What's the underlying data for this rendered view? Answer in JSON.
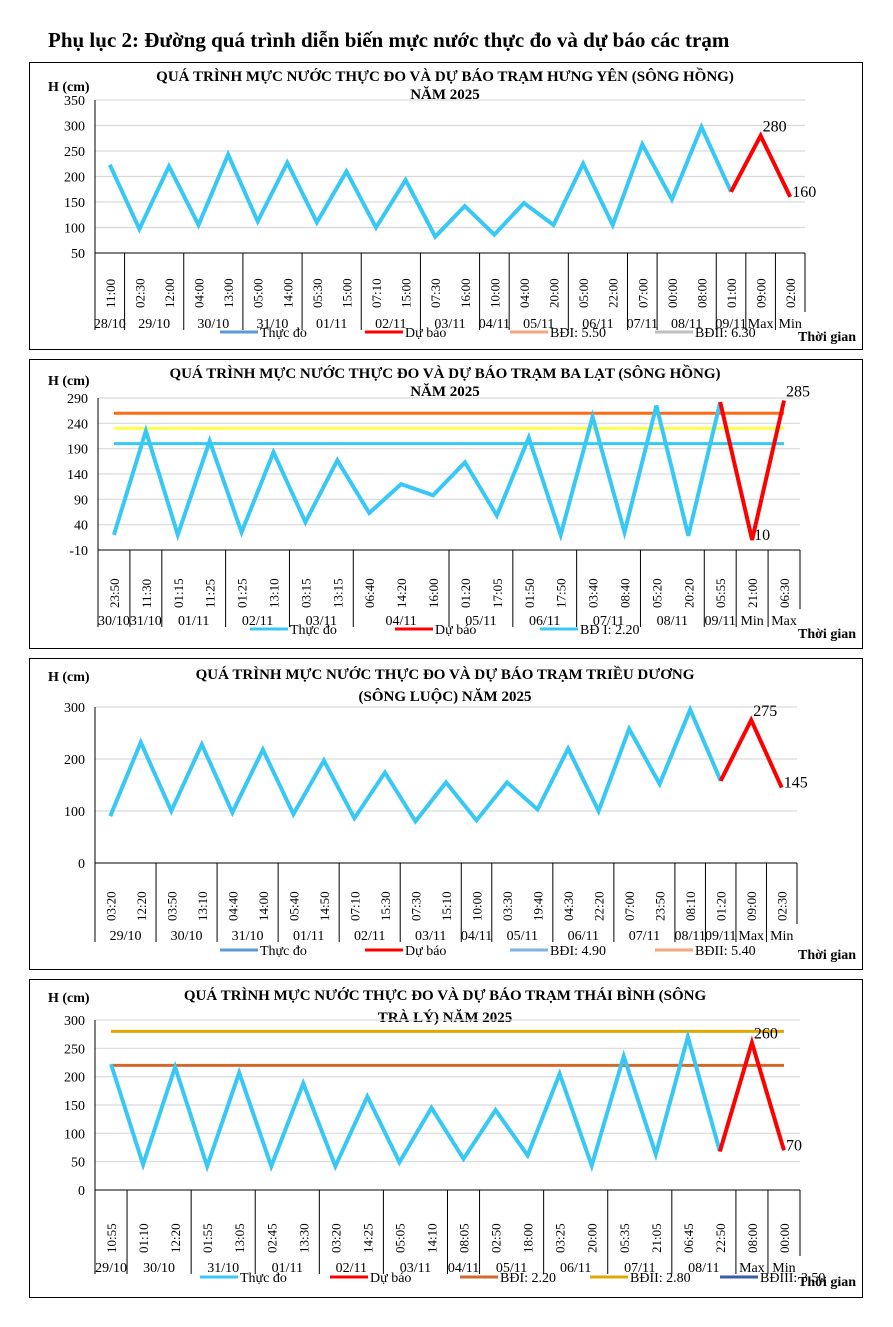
{
  "page_title": "Phụ lục 2: Đường quá trình diễn biến mực nước thực đo và dự báo các trạm",
  "chart_data": [
    {
      "type": "line",
      "title": [
        "QUÁ TRÌNH MỰC NƯỚC THỰC ĐO VÀ DỰ BÁO TRẠM HƯNG YÊN  (SÔNG HỒNG)",
        "NĂM 2025"
      ],
      "ylabel": "H (cm)",
      "xlabel": "Thời gian",
      "ylim": [
        50,
        350
      ],
      "yticks": [
        50,
        100,
        150,
        200,
        250,
        300,
        350
      ],
      "grid": true,
      "times": [
        "11:00",
        "02:30",
        "12:00",
        "04:00",
        "13:00",
        "05:00",
        "14:00",
        "05:30",
        "15:00",
        "07:10",
        "15:00",
        "07:30",
        "16:00",
        "10:00",
        "04:00",
        "20:00",
        "05:00",
        "22:00",
        "07:00",
        "00:00",
        "08:00",
        "01:00",
        "09:00",
        "02:00"
      ],
      "groups": [
        {
          "label": "28/10",
          "span": 1
        },
        {
          "label": "29/10",
          "span": 2
        },
        {
          "label": "30/10",
          "span": 2
        },
        {
          "label": "31/10",
          "span": 2
        },
        {
          "label": "01/11",
          "span": 2
        },
        {
          "label": "02/11",
          "span": 2
        },
        {
          "label": "03/11",
          "span": 2
        },
        {
          "label": "04/11",
          "span": 1
        },
        {
          "label": "05/11",
          "span": 2
        },
        {
          "label": "06/11",
          "span": 2
        },
        {
          "label": "07/11",
          "span": 1
        },
        {
          "label": "08/11",
          "span": 2
        },
        {
          "label": "09/11",
          "span": 1
        },
        {
          "label": "Max",
          "span": 1
        },
        {
          "label": "Min",
          "span": 1
        }
      ],
      "series": [
        {
          "name": "Thực đo",
          "color": "#38c8f5",
          "values": [
            223,
            97,
            220,
            105,
            243,
            112,
            227,
            110,
            210,
            100,
            193,
            82,
            142,
            86,
            148,
            105,
            225,
            105,
            263,
            155,
            297,
            170,
            null,
            null
          ]
        },
        {
          "name": "Dự báo",
          "color": "#ff0000",
          "values": [
            null,
            null,
            null,
            null,
            null,
            null,
            null,
            null,
            null,
            null,
            null,
            null,
            null,
            null,
            null,
            null,
            null,
            null,
            null,
            null,
            null,
            170,
            280,
            160
          ]
        }
      ],
      "thresholds": [],
      "annotations": [
        {
          "index": 22,
          "text": "280"
        },
        {
          "index": 23,
          "text": "160"
        }
      ],
      "legend": [
        {
          "label": "Thực đo",
          "color": "#5b9bd5"
        },
        {
          "label": "Dự báo",
          "color": "#ff0000"
        },
        {
          "label": "BĐI: 5.50",
          "color": "#f4a582"
        },
        {
          "label": "BĐII: 6.30",
          "color": "#bfbfbf"
        }
      ],
      "legend_position": "bottom"
    },
    {
      "type": "line",
      "title": [
        "QUÁ TRÌNH MỰC NƯỚC THỰC ĐO VÀ DỰ BÁO TRẠM BA LẠT (SÔNG HỒNG)",
        "NĂM 2025"
      ],
      "ylabel": "H (cm)",
      "xlabel": "Thời gian",
      "ylim": [
        -10,
        290
      ],
      "yticks": [
        -10,
        40,
        90,
        140,
        190,
        240,
        290
      ],
      "grid": true,
      "times": [
        "23:50",
        "11:30",
        "01:15",
        "11:25",
        "01:25",
        "13:10",
        "03:15",
        "13:15",
        "06:40",
        "14:20",
        "16:00",
        "01:20",
        "17:05",
        "01:50",
        "17:50",
        "03:40",
        "08:40",
        "05:20",
        "20:20",
        "05:55",
        "21:00",
        "06:30"
      ],
      "groups": [
        {
          "label": "30/10",
          "span": 1
        },
        {
          "label": "31/10",
          "span": 1
        },
        {
          "label": "01/11",
          "span": 2
        },
        {
          "label": "02/11",
          "span": 2
        },
        {
          "label": "03/11",
          "span": 2
        },
        {
          "label": "04/11",
          "span": 3
        },
        {
          "label": "05/11",
          "span": 2
        },
        {
          "label": "06/11",
          "span": 2
        },
        {
          "label": "07/11",
          "span": 2
        },
        {
          "label": "08/11",
          "span": 2
        },
        {
          "label": "09/11",
          "span": 1
        },
        {
          "label": "Min",
          "span": 1
        },
        {
          "label": "Max",
          "span": 1
        }
      ],
      "series": [
        {
          "name": "Thực đo",
          "color": "#38c8f5",
          "values": [
            20,
            225,
            20,
            205,
            25,
            183,
            45,
            167,
            63,
            120,
            98,
            163,
            58,
            212,
            20,
            253,
            25,
            275,
            18,
            282,
            null,
            null
          ]
        },
        {
          "name": "Dự báo",
          "color": "#ff0000",
          "values": [
            null,
            null,
            null,
            null,
            null,
            null,
            null,
            null,
            null,
            null,
            null,
            null,
            null,
            null,
            null,
            null,
            null,
            null,
            null,
            282,
            10,
            285
          ]
        }
      ],
      "thresholds": [
        {
          "value": 260,
          "color": "#ff6a13"
        },
        {
          "value": 230,
          "color": "#ffff4d"
        },
        {
          "value": 200,
          "color": "#38c8f5"
        }
      ],
      "annotations": [
        {
          "index": 20,
          "text": "10"
        },
        {
          "index": 21,
          "text": "285"
        }
      ],
      "legend": [
        {
          "label": "Thực đo",
          "color": "#38c8f5"
        },
        {
          "label": "Dự báo",
          "color": "#ff0000"
        },
        {
          "label": "BĐ I: 2.20",
          "color": "#38c8f5"
        }
      ],
      "legend_position": "bottom"
    },
    {
      "type": "line",
      "title": [
        "QUÁ TRÌNH MỰC NƯỚC THỰC ĐO VÀ DỰ BÁO TRẠM  TRIỀU DƯƠNG",
        "(SÔNG  LUỘC) NĂM 2025"
      ],
      "ylabel": "H (cm)",
      "xlabel": "Thời gian",
      "ylim": [
        0,
        300
      ],
      "yticks": [
        0,
        100,
        200,
        300
      ],
      "grid": true,
      "times": [
        "03:20",
        "12:20",
        "03:50",
        "13:10",
        "04:40",
        "14:00",
        "05:40",
        "14:50",
        "07:10",
        "15:30",
        "07:30",
        "15:10",
        "10:00",
        "03:30",
        "19:40",
        "04:30",
        "22:20",
        "07:00",
        "23:50",
        "08:10",
        "01:20",
        "09:00",
        "02:30"
      ],
      "groups": [
        {
          "label": "29/10",
          "span": 2
        },
        {
          "label": "30/10",
          "span": 2
        },
        {
          "label": "31/10",
          "span": 2
        },
        {
          "label": "01/11",
          "span": 2
        },
        {
          "label": "02/11",
          "span": 2
        },
        {
          "label": "03/11",
          "span": 2
        },
        {
          "label": "04/11",
          "span": 1
        },
        {
          "label": "05/11",
          "span": 2
        },
        {
          "label": "06/11",
          "span": 2
        },
        {
          "label": "07/11",
          "span": 2
        },
        {
          "label": "08/11",
          "span": 1
        },
        {
          "label": "09/11",
          "span": 1
        },
        {
          "label": "Max",
          "span": 1
        },
        {
          "label": "Min",
          "span": 1
        }
      ],
      "series": [
        {
          "name": "Thực đo",
          "color": "#38c8f5",
          "values": [
            90,
            232,
            100,
            228,
            97,
            218,
            94,
            197,
            86,
            174,
            80,
            155,
            82,
            155,
            103,
            220,
            100,
            258,
            152,
            295,
            158,
            null,
            null
          ]
        },
        {
          "name": "Dự báo",
          "color": "#ff0000",
          "values": [
            null,
            null,
            null,
            null,
            null,
            null,
            null,
            null,
            null,
            null,
            null,
            null,
            null,
            null,
            null,
            null,
            null,
            null,
            null,
            null,
            158,
            275,
            145
          ]
        }
      ],
      "thresholds": [],
      "annotations": [
        {
          "index": 21,
          "text": "275"
        },
        {
          "index": 22,
          "text": "145"
        }
      ],
      "legend": [
        {
          "label": "Thực đo",
          "color": "#5b9bd5"
        },
        {
          "label": "Dự báo",
          "color": "#ff0000"
        },
        {
          "label": "BĐI: 4.90",
          "color": "#7fb2e0"
        },
        {
          "label": "BĐII: 5.40",
          "color": "#f4a582"
        }
      ],
      "legend_position": "bottom"
    },
    {
      "type": "line",
      "title": [
        "QUÁ TRÌNH MỰC NƯỚC THỰC ĐO VÀ DỰ BÁO TRẠM THÁI BÌNH (SÔNG",
        "TRÀ LÝ) NĂM 2025"
      ],
      "ylabel": "H (cm)",
      "xlabel": "Thời gian",
      "ylim": [
        0,
        300
      ],
      "yticks": [
        0,
        50,
        100,
        150,
        200,
        250,
        300
      ],
      "grid": true,
      "times": [
        "10:55",
        "01:10",
        "12:20",
        "01:55",
        "13:05",
        "02:45",
        "13:30",
        "03:20",
        "14:25",
        "05:05",
        "14:10",
        "08:05",
        "02:50",
        "18:00",
        "03:25",
        "20:00",
        "05:35",
        "21:05",
        "06:45",
        "22:50",
        "08:00",
        "00:00"
      ],
      "groups": [
        {
          "label": "29/10",
          "span": 1
        },
        {
          "label": "30/10",
          "span": 2
        },
        {
          "label": "31/10",
          "span": 2
        },
        {
          "label": "01/11",
          "span": 2
        },
        {
          "label": "02/11",
          "span": 2
        },
        {
          "label": "03/11",
          "span": 2
        },
        {
          "label": "04/11",
          "span": 1
        },
        {
          "label": "05/11",
          "span": 2
        },
        {
          "label": "06/11",
          "span": 2
        },
        {
          "label": "07/11",
          "span": 2
        },
        {
          "label": "08/11",
          "span": 2
        },
        {
          "label": "Max",
          "span": 1
        },
        {
          "label": "Min",
          "span": 1
        }
      ],
      "series": [
        {
          "name": "Thực đo",
          "color": "#38c8f5",
          "values": [
            222,
            45,
            217,
            42,
            207,
            42,
            188,
            42,
            165,
            49,
            145,
            55,
            141,
            61,
            205,
            43,
            236,
            63,
            270,
            68,
            null,
            null
          ]
        },
        {
          "name": "Dự báo",
          "color": "#ff0000",
          "values": [
            null,
            null,
            null,
            null,
            null,
            null,
            null,
            null,
            null,
            null,
            null,
            null,
            null,
            null,
            null,
            null,
            null,
            null,
            null,
            68,
            260,
            70
          ]
        }
      ],
      "thresholds": [
        {
          "value": 280,
          "color": "#e0a800"
        },
        {
          "value": 220,
          "color": "#d0692b"
        }
      ],
      "annotations": [
        {
          "index": 20,
          "text": "260"
        },
        {
          "index": 21,
          "text": "70"
        }
      ],
      "legend": [
        {
          "label": "Thực đo",
          "color": "#38c8f5"
        },
        {
          "label": "Dự báo",
          "color": "#ff0000"
        },
        {
          "label": "BĐI: 2.20",
          "color": "#d0692b"
        },
        {
          "label": "BĐII: 2.80",
          "color": "#e0a800"
        },
        {
          "label": "BĐIII: 3.50",
          "color": "#3b5ea8"
        }
      ],
      "legend_position": "bottom"
    }
  ]
}
